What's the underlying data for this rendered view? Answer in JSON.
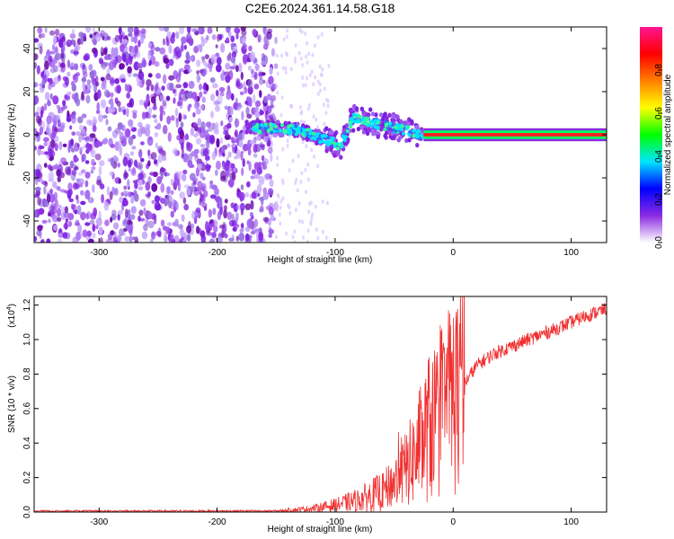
{
  "title": "C2E6.2024.361.14.58.G18",
  "chart_data": [
    {
      "type": "heatmap",
      "xlabel": "Height of straight line (km)",
      "ylabel": "Frequency (Hz)",
      "xlim": [
        -355,
        130
      ],
      "ylim": [
        -50,
        50
      ],
      "xticks": [
        -300,
        -200,
        -100,
        0,
        100
      ],
      "yticks": [
        -40,
        -20,
        0,
        20,
        40
      ],
      "colorbar": {
        "label": "Normalized spectral amplitude",
        "range": [
          0,
          1
        ],
        "ticks": [
          0.0,
          0.2,
          0.4,
          0.6,
          0.8
        ],
        "colors": [
          "#ffffff",
          "#8a2be2",
          "#0000ff",
          "#00e5ff",
          "#00ff00",
          "#ffff00",
          "#ff8000",
          "#ff0000",
          "#ff1493"
        ]
      },
      "features": {
        "noise_region_x": [
          -355,
          -150
        ],
        "signal_track": [
          {
            "x": -175,
            "f": 3
          },
          {
            "x": -150,
            "f": 3
          },
          {
            "x": -130,
            "f": 2
          },
          {
            "x": -110,
            "f": -2
          },
          {
            "x": -95,
            "f": -5
          },
          {
            "x": -85,
            "f": 8
          },
          {
            "x": -65,
            "f": 5
          },
          {
            "x": -45,
            "f": 3
          },
          {
            "x": -30,
            "f": 0
          },
          {
            "x": -20,
            "f": 1
          },
          {
            "x": 0,
            "f": 1
          },
          {
            "x": 130,
            "f": 1
          }
        ],
        "steady_carrier_x": [
          -25,
          130
        ],
        "steady_carrier_f": 0
      }
    },
    {
      "type": "line",
      "xlabel": "Height of straight line (km)",
      "ylabel": "SNR (10 * v/v)",
      "multiplier_label": "(x10",
      "multiplier_exp": "4",
      "multiplier_close": ")",
      "xlim": [
        -355,
        130
      ],
      "ylim": [
        0,
        1.25
      ],
      "xticks": [
        -300,
        -200,
        -100,
        0,
        100
      ],
      "yticks": [
        "0.0",
        "0.2",
        "0.4",
        "0.6",
        "0.8",
        "1.0",
        "1.2"
      ],
      "color": "#f03030",
      "series_trend": [
        {
          "x": -355,
          "y": 0.005
        },
        {
          "x": -150,
          "y": 0.006
        },
        {
          "x": -120,
          "y": 0.02
        },
        {
          "x": -100,
          "y": 0.04
        },
        {
          "x": -80,
          "y": 0.07
        },
        {
          "x": -60,
          "y": 0.12
        },
        {
          "x": -45,
          "y": 0.2
        },
        {
          "x": -30,
          "y": 0.35
        },
        {
          "x": -20,
          "y": 0.5
        },
        {
          "x": -10,
          "y": 0.6
        },
        {
          "x": 0,
          "y": 0.68
        },
        {
          "x": 10,
          "y": 0.75
        },
        {
          "x": 20,
          "y": 0.85
        },
        {
          "x": 35,
          "y": 0.92
        },
        {
          "x": 60,
          "y": 0.99
        },
        {
          "x": 90,
          "y": 1.07
        },
        {
          "x": 110,
          "y": 1.13
        },
        {
          "x": 130,
          "y": 1.18
        }
      ]
    }
  ]
}
